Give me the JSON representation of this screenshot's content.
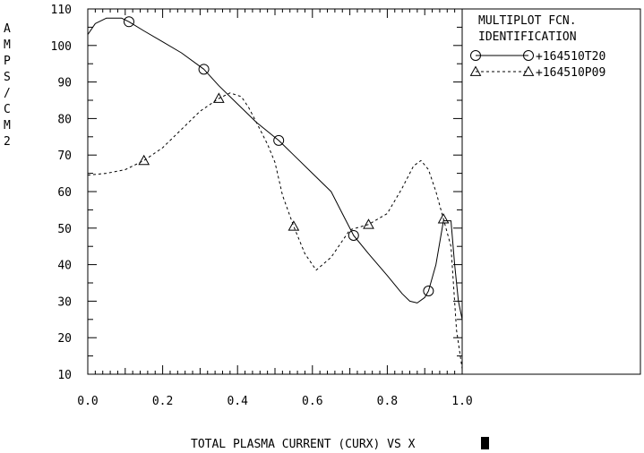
{
  "chart_data": {
    "type": "line",
    "ylabel": "AMPS/CM2",
    "xlabel": "TOTAL PLASMA CURRENT (CURX) VS X",
    "xlim": [
      0.0,
      1.0
    ],
    "ylim": [
      10,
      110
    ],
    "x_ticks": [
      "0.0",
      "0.2",
      "0.4",
      "0.6",
      "0.8",
      "1.0"
    ],
    "y_ticks": [
      "10",
      "20",
      "30",
      "40",
      "50",
      "60",
      "70",
      "80",
      "90",
      "100",
      "110"
    ],
    "legend": {
      "title_line1": "MULTIPLOT FCN.",
      "title_line2": "IDENTIFICATION",
      "placement": "top-right"
    },
    "series": [
      {
        "name": "+164510T20",
        "style": "solid",
        "marker": "circle",
        "x": [
          0.0,
          0.02,
          0.05,
          0.07,
          0.09,
          0.11,
          0.15,
          0.2,
          0.25,
          0.31,
          0.35,
          0.4,
          0.45,
          0.51,
          0.55,
          0.6,
          0.65,
          0.68,
          0.71,
          0.75,
          0.8,
          0.84,
          0.86,
          0.88,
          0.9,
          0.91,
          0.93,
          0.95,
          0.97,
          0.98,
          0.99,
          1.0
        ],
        "y": [
          103,
          106,
          107.5,
          107.5,
          107.5,
          106.5,
          104,
          101,
          98,
          93.5,
          89,
          84,
          79,
          74,
          70,
          65,
          60,
          54,
          48,
          43,
          37,
          32,
          30,
          29.5,
          31,
          32.8,
          40,
          52,
          52,
          40,
          30,
          25
        ],
        "marker_x": [
          0.11,
          0.31,
          0.51,
          0.71,
          0.91
        ],
        "marker_y": [
          106.5,
          93.5,
          74,
          48,
          32.8
        ]
      },
      {
        "name": "+164510P09",
        "style": "dashed",
        "marker": "triangle",
        "x": [
          0.0,
          0.05,
          0.1,
          0.15,
          0.2,
          0.25,
          0.3,
          0.35,
          0.38,
          0.41,
          0.43,
          0.46,
          0.48,
          0.5,
          0.52,
          0.55,
          0.58,
          0.61,
          0.65,
          0.7,
          0.75,
          0.8,
          0.84,
          0.87,
          0.89,
          0.91,
          0.93,
          0.95,
          0.97,
          0.985,
          1.0
        ],
        "y": [
          64.5,
          65,
          66,
          68.5,
          72,
          77,
          82,
          85.5,
          87,
          86,
          83,
          77,
          73,
          68,
          59,
          50.5,
          43,
          38.5,
          42,
          49.5,
          51,
          54,
          61,
          67,
          68.5,
          66,
          60,
          52.5,
          45,
          22,
          11.5
        ],
        "marker_x": [
          0.15,
          0.35,
          0.55,
          0.75,
          0.95
        ],
        "marker_y": [
          68.5,
          85.5,
          50.5,
          51,
          52.5
        ]
      }
    ]
  }
}
